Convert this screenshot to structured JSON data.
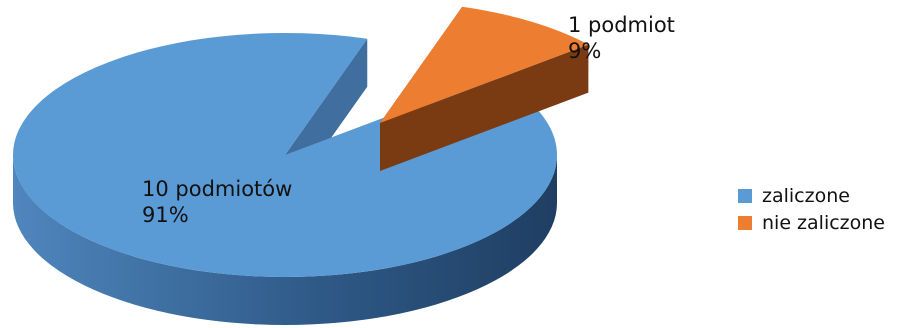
{
  "chart_data": {
    "type": "pie",
    "style": "3d-exploded",
    "slices": [
      {
        "name": "zaliczone",
        "value": 91,
        "count_label": "10 podmiotów",
        "percent_label": "91%",
        "color": "#5b9bd5",
        "side_color": "#3f6e9f"
      },
      {
        "name": "nie zaliczone",
        "value": 9,
        "count_label": "1 podmiot",
        "percent_label": "9%",
        "color": "#ed7d31",
        "side_color": "#7a3b12"
      }
    ],
    "legend_position": "right"
  }
}
